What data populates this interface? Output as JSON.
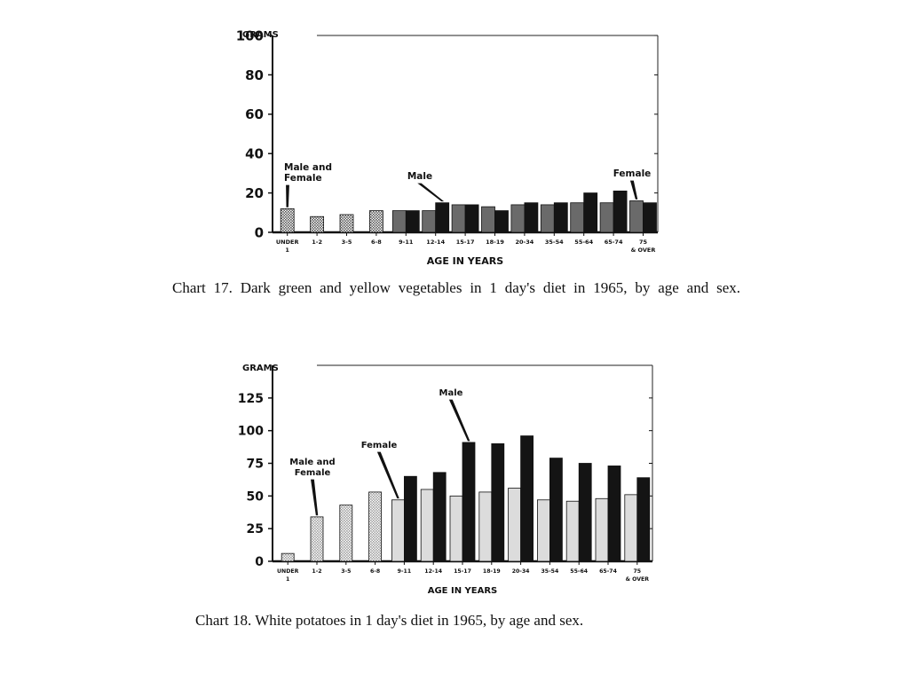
{
  "chart_data": [
    {
      "id": "chart17",
      "type": "bar",
      "ylabel": "GRAMS",
      "xlabel": "AGE IN YEARS",
      "ylim": [
        0,
        100
      ],
      "yticks": [
        0,
        20,
        40,
        60,
        80,
        100
      ],
      "categories": [
        "UNDER 1",
        "1-2",
        "3-5",
        "6-8",
        "9-11",
        "12-14",
        "15-17",
        "18-19",
        "20-34",
        "35-54",
        "55-64",
        "65-74",
        "75 & OVER"
      ],
      "combined_groups": 4,
      "series": [
        {
          "key": "combined",
          "values": [
            12,
            8,
            9,
            11,
            null,
            null,
            null,
            null,
            null,
            null,
            null,
            null,
            null
          ]
        },
        {
          "key": "female",
          "values": [
            null,
            null,
            null,
            null,
            11,
            11,
            14,
            13,
            14,
            14,
            15,
            15,
            16
          ]
        },
        {
          "key": "male",
          "values": [
            null,
            null,
            null,
            null,
            11,
            15,
            14,
            11,
            15,
            15,
            20,
            21,
            15
          ]
        }
      ],
      "annotations": [
        {
          "text": "Male and Female",
          "lines": [
            "Male and",
            "Female"
          ],
          "target": "combined:0"
        },
        {
          "text": "Male",
          "lines": [
            "Male"
          ],
          "target": "male:5"
        },
        {
          "text": "Female",
          "lines": [
            "Female"
          ],
          "target": "female:12"
        }
      ],
      "legend": "none",
      "grid": false,
      "bar_colors": {
        "combined": "#5a5a5a",
        "female": "#6a6a6a",
        "male": "#141414"
      },
      "caption": "Chart 17. Dark green and yellow vegetables in 1 day's diet in 1965, by age and sex."
    },
    {
      "id": "chart18",
      "type": "bar",
      "ylabel": "GRAMS",
      "xlabel": "AGE IN YEARS",
      "ylim": [
        0,
        150
      ],
      "yticks": [
        0,
        25,
        50,
        75,
        100,
        125
      ],
      "categories": [
        "UNDER 1",
        "1-2",
        "3-5",
        "6-8",
        "9-11",
        "12-14",
        "15-17",
        "18-19",
        "20-34",
        "35-54",
        "55-64",
        "65-74",
        "75 & OVER"
      ],
      "combined_groups": 4,
      "series": [
        {
          "key": "combined",
          "values": [
            6,
            34,
            43,
            53,
            null,
            null,
            null,
            null,
            null,
            null,
            null,
            null,
            null
          ]
        },
        {
          "key": "female",
          "values": [
            null,
            null,
            null,
            null,
            47,
            55,
            50,
            53,
            56,
            47,
            46,
            48,
            51
          ]
        },
        {
          "key": "male",
          "values": [
            null,
            null,
            null,
            null,
            65,
            68,
            91,
            90,
            96,
            79,
            75,
            73,
            64
          ]
        }
      ],
      "annotations": [
        {
          "text": "Male and Female",
          "lines": [
            "Male and",
            "Female"
          ],
          "target": "combined:1"
        },
        {
          "text": "Female",
          "lines": [
            "Female"
          ],
          "target": "female:4"
        },
        {
          "text": "Male",
          "lines": [
            "Male"
          ],
          "target": "male:6"
        }
      ],
      "legend": "none",
      "grid": false,
      "bar_colors": {
        "combined": "#a0a0a0",
        "female": "#dcdcdc",
        "male": "#141414"
      },
      "caption": "Chart 18. White potatoes in 1 day's diet in 1965, by age and sex."
    }
  ]
}
